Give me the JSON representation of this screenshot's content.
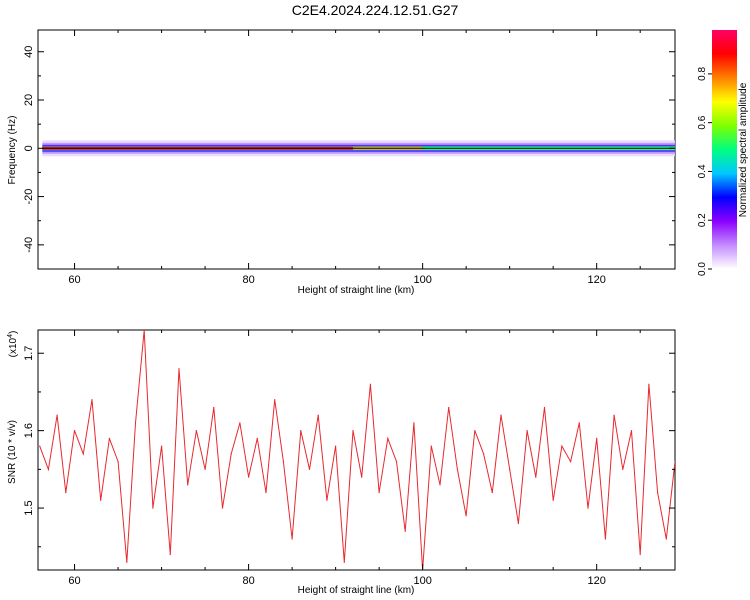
{
  "title": "C2E4.2024.224.12.51.G27",
  "chart_data": [
    {
      "type": "heatmap",
      "xlabel": "Height of straight line (km)",
      "ylabel": "Frequency (Hz)",
      "xlim": [
        55.8,
        129
      ],
      "ylim": [
        -50,
        49
      ],
      "xticks": [
        60,
        80,
        100,
        120
      ],
      "yticks": [
        -40,
        -20,
        0,
        20,
        40
      ],
      "colorbar": {
        "label": "Normalized spectral amplitude",
        "range": [
          0,
          0.98
        ],
        "ticks": [
          "0.0",
          "0.2",
          "0.4",
          "0.6",
          "0.8"
        ],
        "colors": [
          "#ffffff",
          "#c38cff",
          "#8b00ff",
          "#0000ff",
          "#00c8ff",
          "#00ff80",
          "#80ff00",
          "#ffff00",
          "#ff8000",
          "#ff0000",
          "#ff0066"
        ]
      },
      "band": {
        "center_hz": 0,
        "x_start_km": 56.3,
        "x_end_km": 129,
        "note_segments": [
          {
            "x": [
              56.3,
              92
            ],
            "peak_amplitude": 0.9
          },
          {
            "x": [
              92,
              100
            ],
            "peak_amplitude": 0.75
          },
          {
            "x": [
              100,
              129
            ],
            "peak_amplitude": 0.45
          }
        ]
      }
    },
    {
      "type": "line",
      "xlabel": "Height of straight line (km)",
      "ylabel": "SNR (10 * v/v)",
      "yscale_label_base": "(x10",
      "yscale_label_exp": "4",
      "yscale_label_close": ")",
      "xlim": [
        55.8,
        129
      ],
      "ylim": [
        1.42,
        1.73
      ],
      "xticks": [
        60,
        80,
        100,
        120
      ],
      "yticks": [
        "1.5",
        "1.6",
        "1.7"
      ],
      "line_color": "#e8292e",
      "series": [
        {
          "x": [
            56,
            57,
            58,
            59,
            60,
            61,
            62,
            63,
            64,
            65,
            66,
            67,
            68,
            69,
            70,
            71,
            72,
            73,
            74,
            75,
            76,
            77,
            78,
            79,
            80,
            81,
            82,
            83,
            84,
            85,
            86,
            87,
            88,
            89,
            90,
            91,
            92,
            93,
            94,
            95,
            96,
            97,
            98,
            99,
            100,
            101,
            102,
            103,
            104,
            105,
            106,
            107,
            108,
            109,
            110,
            111,
            112,
            113,
            114,
            115,
            116,
            117,
            118,
            119,
            120,
            121,
            122,
            123,
            124,
            125,
            126,
            127,
            128,
            129
          ],
          "y": [
            1.58,
            1.55,
            1.62,
            1.52,
            1.6,
            1.57,
            1.64,
            1.51,
            1.59,
            1.56,
            1.43,
            1.61,
            1.73,
            1.5,
            1.58,
            1.44,
            1.68,
            1.53,
            1.6,
            1.55,
            1.63,
            1.5,
            1.57,
            1.61,
            1.54,
            1.59,
            1.52,
            1.64,
            1.56,
            1.46,
            1.6,
            1.55,
            1.62,
            1.51,
            1.58,
            1.43,
            1.6,
            1.54,
            1.66,
            1.52,
            1.59,
            1.56,
            1.47,
            1.61,
            1.42,
            1.58,
            1.53,
            1.63,
            1.55,
            1.49,
            1.6,
            1.57,
            1.52,
            1.62,
            1.55,
            1.48,
            1.6,
            1.54,
            1.63,
            1.51,
            1.58,
            1.56,
            1.61,
            1.5,
            1.59,
            1.46,
            1.62,
            1.55,
            1.6,
            1.44,
            1.66,
            1.52,
            1.46,
            1.56
          ]
        }
      ]
    }
  ]
}
